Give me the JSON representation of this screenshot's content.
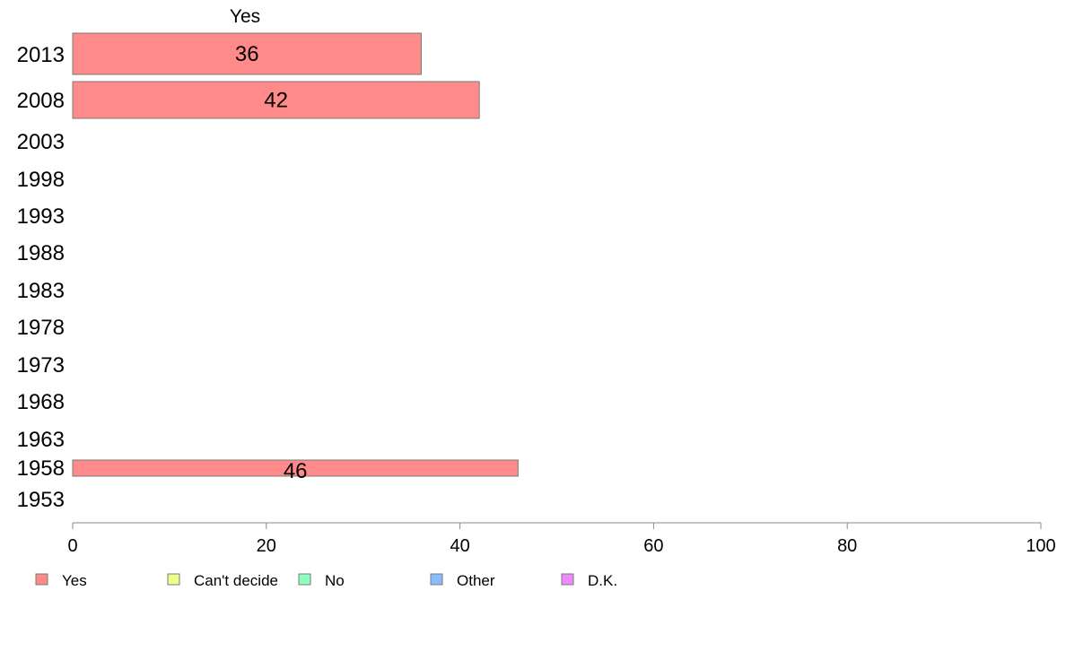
{
  "chart_data": {
    "type": "bar",
    "orientation": "horizontal",
    "stacked": true,
    "panel_title": "Yes",
    "categories": [
      "2013",
      "2008",
      "2003",
      "1998",
      "1993",
      "1988",
      "1983",
      "1978",
      "1973",
      "1968",
      "1963",
      "1958",
      "1953"
    ],
    "series": [
      {
        "name": "Yes",
        "color": "#FF8A8A",
        "values": [
          36,
          42,
          null,
          null,
          null,
          null,
          null,
          null,
          null,
          null,
          null,
          46,
          null
        ]
      }
    ],
    "data_labels": [
      36,
      42,
      null,
      null,
      null,
      null,
      null,
      null,
      null,
      null,
      null,
      46,
      null
    ],
    "x_ticks": [
      "0",
      "20",
      "40",
      "60",
      "80",
      "100"
    ],
    "xlim": [
      0,
      100
    ],
    "grid": false,
    "legend_position": "bottom-left",
    "legend": [
      {
        "label": "Yes",
        "color": "#FF8A8A"
      },
      {
        "label": "Can't decide",
        "color": "#EEFF8A"
      },
      {
        "label": "No",
        "color": "#8AFFBF"
      },
      {
        "label": "Other",
        "color": "#8ABBFF"
      },
      {
        "label": "D.K.",
        "color": "#EE8AFF"
      }
    ]
  }
}
